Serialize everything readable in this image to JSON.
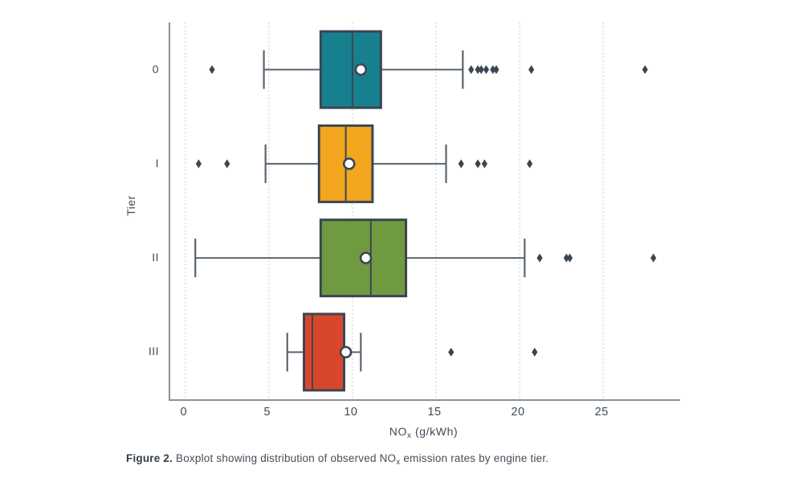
{
  "figure": {
    "y_axis_label": "Tier",
    "x_axis_label": {
      "prefix": "NO",
      "sub": "x",
      "suffix": " (g/kWh)"
    },
    "caption": {
      "label": "Figure 2.",
      "text_before_sub": " Boxplot showing distribution of observed NO",
      "sub": "x",
      "text_after_sub": " emission rates by engine tier."
    }
  },
  "chart_data": {
    "type": "boxplot",
    "orientation": "horizontal",
    "title": "",
    "xlabel": "NOx (g/kWh)",
    "ylabel": "Tier",
    "xlim": [
      -0.9,
      29.6
    ],
    "x_ticks": [
      0,
      5,
      10,
      15,
      20,
      25
    ],
    "grid": "vertical dotted lines at each x tick",
    "legend": "none",
    "categories": [
      "0",
      "I",
      "II",
      "III"
    ],
    "series": [
      {
        "tier": "0",
        "color": "#17808F",
        "whisker_low": 4.7,
        "q1": 8.1,
        "median": 10.0,
        "q3": 11.7,
        "whisker_high": 16.6,
        "mean": 10.5,
        "outliers": [
          1.6,
          17.1,
          17.5,
          17.7,
          18.0,
          18.4,
          18.6,
          20.7,
          27.5
        ]
      },
      {
        "tier": "I",
        "color": "#F2A71E",
        "whisker_low": 4.8,
        "q1": 8.0,
        "median": 9.6,
        "q3": 11.2,
        "whisker_high": 15.6,
        "mean": 9.8,
        "outliers": [
          0.8,
          2.5,
          16.5,
          17.5,
          17.9,
          20.6
        ]
      },
      {
        "tier": "II",
        "color": "#6F9A40",
        "whisker_low": 0.6,
        "q1": 8.1,
        "median": 11.1,
        "q3": 13.2,
        "whisker_high": 20.3,
        "mean": 10.8,
        "outliers": [
          21.2,
          22.8,
          23.0,
          28.0
        ]
      },
      {
        "tier": "III",
        "color": "#D8472B",
        "whisker_low": 6.1,
        "q1": 7.1,
        "median": 7.6,
        "q3": 9.5,
        "whisker_high": 10.5,
        "mean": 9.6,
        "outliers": [
          15.9,
          20.9
        ]
      }
    ],
    "style": {
      "box_border_color": "#3B4652",
      "median_line_color": "#3B4652",
      "whisker_color": "#5A6470",
      "outlier_marker": "diamond",
      "outlier_color": "#3B4652",
      "mean_marker": "white circle with dark border",
      "mean_fill": "#FFFFFF",
      "grid_color": "#c9cdd1",
      "axis_color": "#8b929a",
      "text_color": "#3E4B59",
      "background": "#FFFFFF"
    }
  }
}
